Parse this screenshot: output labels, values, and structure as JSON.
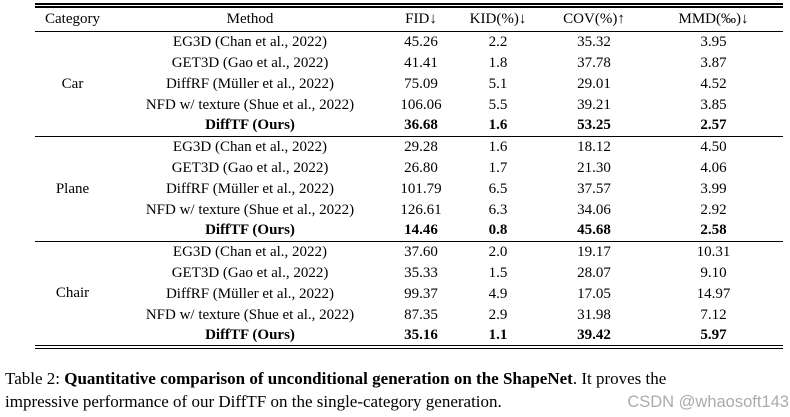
{
  "table": {
    "columns": [
      "Category",
      "Method",
      "FID↓",
      "KID(%)↓",
      "COV(%)↑",
      "MMD(‰)↓"
    ],
    "sections": [
      {
        "category": "Car",
        "rows": [
          {
            "method": "EG3D (Chan et al., 2022)",
            "values": [
              "45.26",
              "2.2",
              "35.32",
              "3.95"
            ],
            "bold": false
          },
          {
            "method": "GET3D (Gao et al., 2022)",
            "values": [
              "41.41",
              "1.8",
              "37.78",
              "3.87"
            ],
            "bold": false
          },
          {
            "method": "DiffRF (Müller et al., 2022)",
            "values": [
              "75.09",
              "5.1",
              "29.01",
              "4.52"
            ],
            "bold": false
          },
          {
            "method": "NFD w/ texture (Shue et al., 2022)",
            "values": [
              "106.06",
              "5.5",
              "39.21",
              "3.85"
            ],
            "bold": false
          },
          {
            "method": "DiffTF (Ours)",
            "values": [
              "36.68",
              "1.6",
              "53.25",
              "2.57"
            ],
            "bold": true
          }
        ]
      },
      {
        "category": "Plane",
        "rows": [
          {
            "method": "EG3D (Chan et al., 2022)",
            "values": [
              "29.28",
              "1.6",
              "18.12",
              "4.50"
            ],
            "bold": false
          },
          {
            "method": "GET3D (Gao et al., 2022)",
            "values": [
              "26.80",
              "1.7",
              "21.30",
              "4.06"
            ],
            "bold": false
          },
          {
            "method": "DiffRF (Müller et al., 2022)",
            "values": [
              "101.79",
              "6.5",
              "37.57",
              "3.99"
            ],
            "bold": false
          },
          {
            "method": "NFD w/ texture (Shue et al., 2022)",
            "values": [
              "126.61",
              "6.3",
              "34.06",
              "2.92"
            ],
            "bold": false
          },
          {
            "method": "DiffTF (Ours)",
            "values": [
              "14.46",
              "0.8",
              "45.68",
              "2.58"
            ],
            "bold": true
          }
        ]
      },
      {
        "category": "Chair",
        "rows": [
          {
            "method": "EG3D (Chan et al., 2022)",
            "values": [
              "37.60",
              "2.0",
              "19.17",
              "10.31"
            ],
            "bold": false
          },
          {
            "method": "GET3D (Gao et al., 2022)",
            "values": [
              "35.33",
              "1.5",
              "28.07",
              "9.10"
            ],
            "bold": false
          },
          {
            "method": "DiffRF (Müller et al., 2022)",
            "values": [
              "99.37",
              "4.9",
              "17.05",
              "14.97"
            ],
            "bold": false
          },
          {
            "method": "NFD w/ texture (Shue et al., 2022)",
            "values": [
              "87.35",
              "2.9",
              "31.98",
              "7.12"
            ],
            "bold": false
          },
          {
            "method": "DiffTF (Ours)",
            "values": [
              "35.16",
              "1.1",
              "39.42",
              "5.97"
            ],
            "bold": true
          }
        ]
      }
    ]
  },
  "caption": {
    "line1_prefix": "Table 2: ",
    "line1_bold": "Quantitative comparison of unconditional generation on the ShapeNet",
    "line1_rest": ". It proves the",
    "line2": "impressive performance of our DiffTF on the single-category generation."
  },
  "watermark": "CSDN @whaosoft143",
  "colors": {
    "text": "#000000",
    "rule": "#000000",
    "watermark": "#ababab",
    "background": "#ffffff"
  }
}
